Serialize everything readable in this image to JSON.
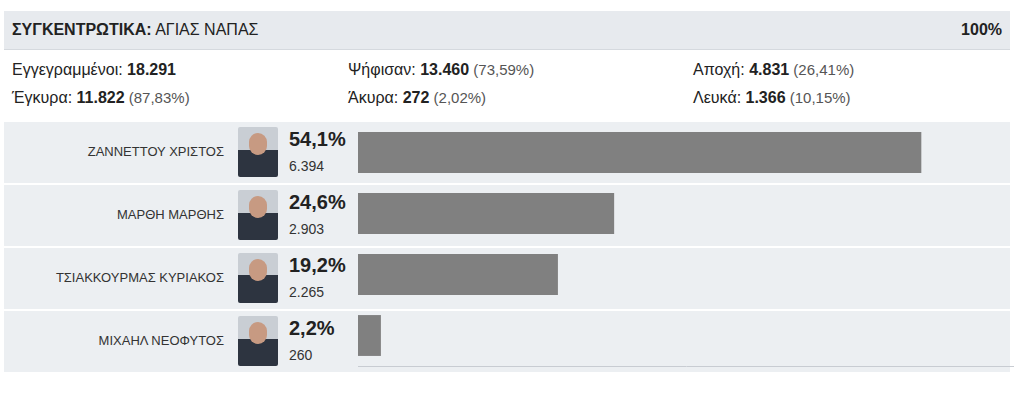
{
  "header": {
    "label": "ΣΥΓΚΕΝΤΡΩΤΙΚΑ:",
    "title": "ΑΓΙΑΣ ΝΑΠΑΣ",
    "progress": "100%"
  },
  "stats": [
    {
      "label": "Εγγεγραμμένοι:",
      "value": "18.291",
      "percent": null
    },
    {
      "label": "Ψήφισαν:",
      "value": "13.460",
      "percent": "(73,59%)"
    },
    {
      "label": "Αποχή:",
      "value": "4.831",
      "percent": "(26,41%)"
    },
    {
      "label": "Έγκυρα:",
      "value": "11.822",
      "percent": "(87,83%)"
    },
    {
      "label": "Άκυρα:",
      "value": "272",
      "percent": "(2,02%)"
    },
    {
      "label": "Λευκά:",
      "value": "1.366",
      "percent": "(10,15%)"
    }
  ],
  "chart_data": {
    "type": "bar",
    "orientation": "horizontal",
    "categories": [
      "ΖΑΝΝΕΤΤΟΥ ΧΡΙΣΤΟΣ",
      "ΜΑΡΘΗ ΜΑΡΘΗΣ",
      "ΤΣΙΑΚΚΟΥΡΜΑΣ ΚΥΡΙΑΚΟΣ",
      "ΜΙΧΑΗΛ ΝΕΟΦΥΤΟΣ"
    ],
    "values": [
      54.1,
      24.6,
      19.2,
      2.2
    ],
    "value_labels": [
      "54,1%",
      "24,6%",
      "19,2%",
      "2,2%"
    ],
    "votes": [
      "6.394",
      "2.903",
      "2.265",
      "260"
    ],
    "color": "#808080",
    "xlim": [
      0,
      63
    ],
    "grid": false,
    "data_labels": true,
    "tick_labels": false
  }
}
